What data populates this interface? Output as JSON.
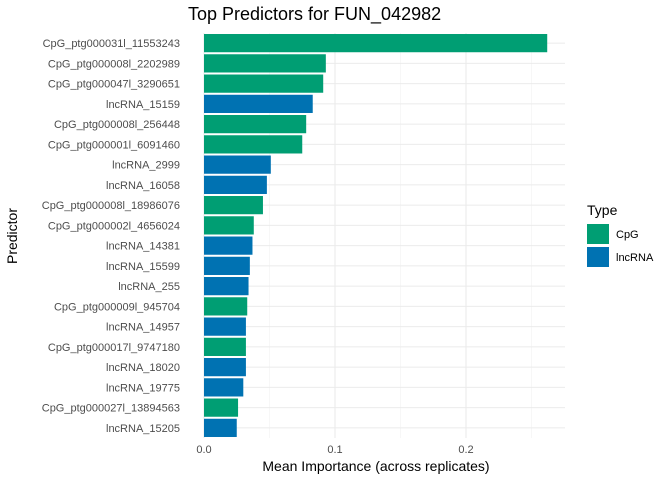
{
  "chart_data": {
    "type": "bar",
    "orientation": "horizontal",
    "title": "Top Predictors for FUN_042982",
    "xlabel": "Mean Importance (across replicates)",
    "ylabel": "Predictor",
    "xlim": [
      0,
      0.28
    ],
    "x_ticks": [
      {
        "value": 0.0,
        "label": "0.0"
      },
      {
        "value": 0.1,
        "label": "0.1"
      },
      {
        "value": 0.2,
        "label": "0.2"
      }
    ],
    "grid": true,
    "legend": {
      "title": "Type",
      "placement": "right",
      "entries": [
        {
          "name": "CpG",
          "color": "#009E73"
        },
        {
          "name": "lncRNA",
          "color": "#0072B2"
        }
      ]
    },
    "bars": [
      {
        "label": "CpG_ptg000031l_11553243",
        "value": 0.262,
        "type": "CpG"
      },
      {
        "label": "CpG_ptg000008l_2202989",
        "value": 0.093,
        "type": "CpG"
      },
      {
        "label": "CpG_ptg000047l_3290651",
        "value": 0.091,
        "type": "CpG"
      },
      {
        "label": "lncRNA_15159",
        "value": 0.083,
        "type": "lncRNA"
      },
      {
        "label": "CpG_ptg000008l_256448",
        "value": 0.078,
        "type": "CpG"
      },
      {
        "label": "CpG_ptg000001l_6091460",
        "value": 0.075,
        "type": "CpG"
      },
      {
        "label": "lncRNA_2999",
        "value": 0.051,
        "type": "lncRNA"
      },
      {
        "label": "lncRNA_16058",
        "value": 0.048,
        "type": "lncRNA"
      },
      {
        "label": "CpG_ptg000008l_18986076",
        "value": 0.045,
        "type": "CpG"
      },
      {
        "label": "CpG_ptg000002l_4656024",
        "value": 0.038,
        "type": "CpG"
      },
      {
        "label": "lncRNA_14381",
        "value": 0.037,
        "type": "lncRNA"
      },
      {
        "label": "lncRNA_15599",
        "value": 0.035,
        "type": "lncRNA"
      },
      {
        "label": "lncRNA_255",
        "value": 0.034,
        "type": "lncRNA"
      },
      {
        "label": "CpG_ptg000009l_945704",
        "value": 0.033,
        "type": "CpG"
      },
      {
        "label": "lncRNA_14957",
        "value": 0.032,
        "type": "lncRNA"
      },
      {
        "label": "CpG_ptg000017l_9747180",
        "value": 0.032,
        "type": "CpG"
      },
      {
        "label": "lncRNA_18020",
        "value": 0.032,
        "type": "lncRNA"
      },
      {
        "label": "lncRNA_19775",
        "value": 0.03,
        "type": "lncRNA"
      },
      {
        "label": "CpG_ptg000027l_13894563",
        "value": 0.026,
        "type": "CpG"
      },
      {
        "label": "lncRNA_15205",
        "value": 0.025,
        "type": "lncRNA"
      }
    ]
  }
}
